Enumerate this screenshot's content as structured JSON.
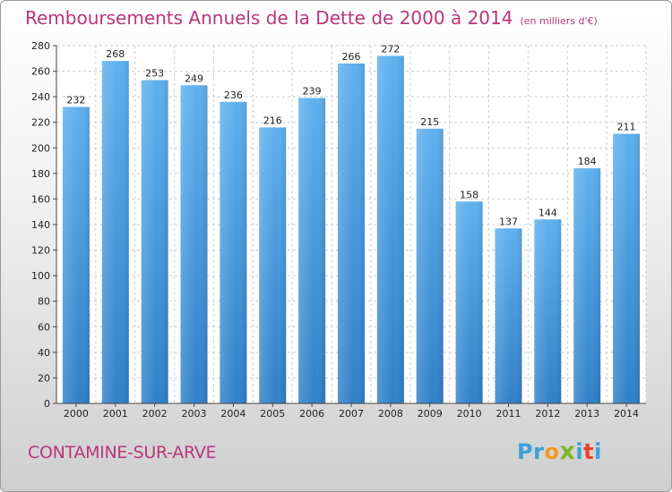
{
  "chart_data": {
    "type": "bar",
    "title": "Remboursements Annuels de la Dette de 2000 à 2014",
    "unit_note": "(en milliers d'€)",
    "categories": [
      "2000",
      "2001",
      "2002",
      "2003",
      "2004",
      "2005",
      "2006",
      "2007",
      "2008",
      "2009",
      "2010",
      "2011",
      "2012",
      "2013",
      "2014"
    ],
    "values": [
      232,
      268,
      253,
      249,
      236,
      216,
      239,
      266,
      272,
      215,
      158,
      137,
      144,
      184,
      211
    ],
    "ylim": [
      0,
      280
    ],
    "yticks": [
      0,
      20,
      40,
      60,
      80,
      100,
      120,
      140,
      160,
      180,
      200,
      220,
      240,
      260,
      280
    ],
    "grid": true,
    "bar_color": "#4f9fe0"
  },
  "footer": {
    "city": "CONTAMINE-SUR-ARVE",
    "logo_letters": [
      "P",
      "r",
      "o",
      "x",
      "i",
      "t",
      "i"
    ],
    "logo_colors": [
      "#3aa0d8",
      "#3aa0d8",
      "#f29a1f",
      "#7ab829",
      "#3aa0d8",
      "#e8422f",
      "#3aa0d8"
    ]
  },
  "colors": {
    "title": "#b8367c",
    "grid": "#cccccc"
  }
}
